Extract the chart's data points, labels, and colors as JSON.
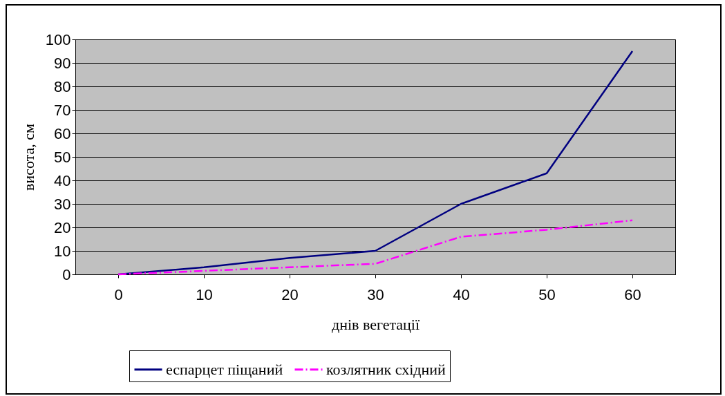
{
  "chart_data": {
    "type": "line",
    "xlabel": "днів вегетації",
    "ylabel": "висота, см",
    "categories": [
      "0",
      "10",
      "20",
      "30",
      "40",
      "50",
      "60"
    ],
    "series": [
      {
        "name": "еспарцет піщаний",
        "color": "#000080",
        "line_style": "solid",
        "values": [
          0,
          3,
          7,
          10,
          30,
          43,
          95
        ]
      },
      {
        "name": "козлятник східний",
        "color": "#ff00ff",
        "line_style": "dashed",
        "values": [
          0,
          1.5,
          3,
          4.5,
          16,
          19,
          23
        ]
      }
    ],
    "ylim": [
      0,
      100
    ],
    "yticks": [
      0,
      10,
      20,
      30,
      40,
      50,
      60,
      70,
      80,
      90,
      100
    ],
    "grid": "y",
    "legend": "bottom"
  }
}
